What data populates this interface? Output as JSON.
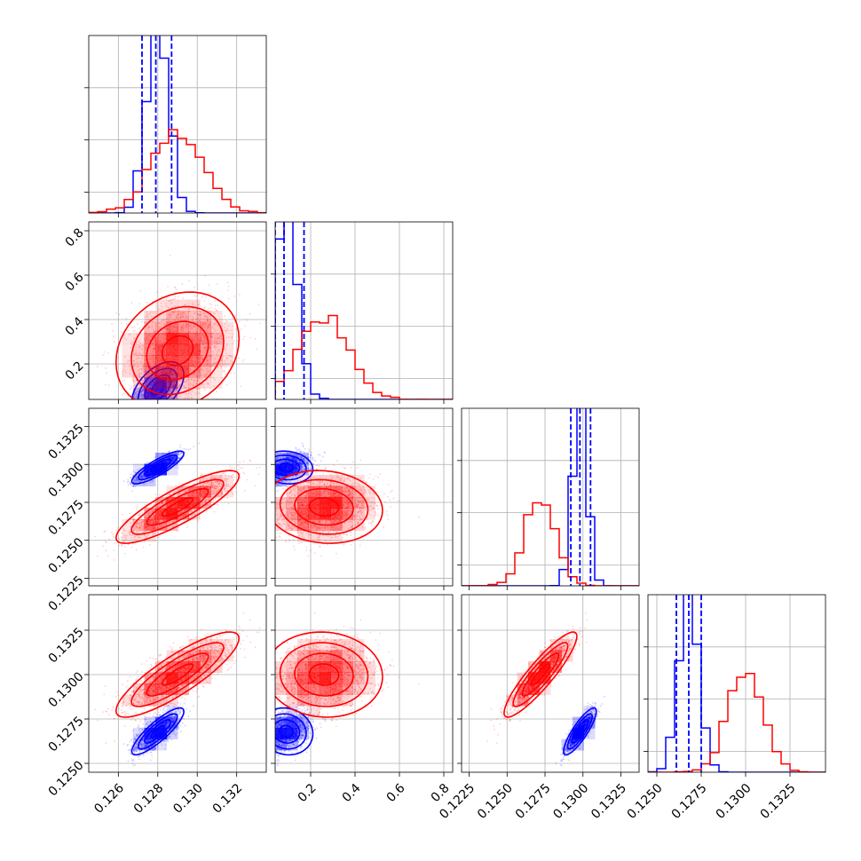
{
  "colors": {
    "series_a": "#0000ff",
    "series_b": "#ff0000",
    "grid": "#b0b0b0"
  },
  "chart_data": {
    "type": "corner",
    "grid": true,
    "series": [
      {
        "name": "",
        "color": "#0000ff",
        "means": [
          0.128,
          0.09,
          0.1298,
          0.1268
        ],
        "stds": [
          0.00055,
          0.05,
          0.00045,
          0.00055
        ],
        "quantiles": [
          [
            0.1272,
            0.1279,
            0.1287
          ],
          [
            0.04,
            0.08,
            0.17
          ],
          [
            0.1292,
            0.1298,
            0.1305
          ],
          [
            0.1261,
            0.1268,
            0.1275
          ]
        ]
      },
      {
        "name": "",
        "color": "#ff0000",
        "means": [
          0.129,
          0.26,
          0.1272,
          0.13
        ],
        "stds": [
          0.0013,
          0.11,
          0.001,
          0.001
        ]
      }
    ],
    "params": [
      {
        "range": [
          0.1245,
          0.1335
        ],
        "ticks": [
          0.126,
          0.128,
          0.13,
          0.132
        ],
        "tick_labels": [
          "0.126",
          "0.128",
          "0.130",
          "0.132"
        ]
      },
      {
        "range": [
          0.04,
          0.84
        ],
        "ticks": [
          0.2,
          0.4,
          0.6,
          0.8
        ],
        "tick_labels": [
          "0.2",
          "0.4",
          "0.6",
          "0.8"
        ]
      },
      {
        "range": [
          0.122,
          0.1337
        ],
        "ticks": [
          0.1225,
          0.125,
          0.1275,
          0.13,
          0.1325
        ],
        "tick_labels": [
          "0.1225",
          "0.1250",
          "0.1275",
          "0.1300",
          "0.1325"
        ]
      },
      {
        "range": [
          0.1245,
          0.1345
        ],
        "ticks": [
          0.125,
          0.1275,
          0.13,
          0.1325
        ],
        "tick_labels": [
          "0.1250",
          "0.1275",
          "0.1300",
          "0.1325"
        ]
      }
    ],
    "correlations": {
      "series_a": {
        "0-1": 0.5,
        "0-2": 0.85,
        "0-3": 0.85,
        "1-2": -0.1,
        "1-3": -0.1,
        "2-3": 0.85
      },
      "series_b": {
        "0-1": 0.2,
        "0-2": 0.85,
        "0-3": 0.85,
        "1-2": -0.1,
        "1-3": -0.05,
        "2-3": 0.9
      }
    }
  }
}
